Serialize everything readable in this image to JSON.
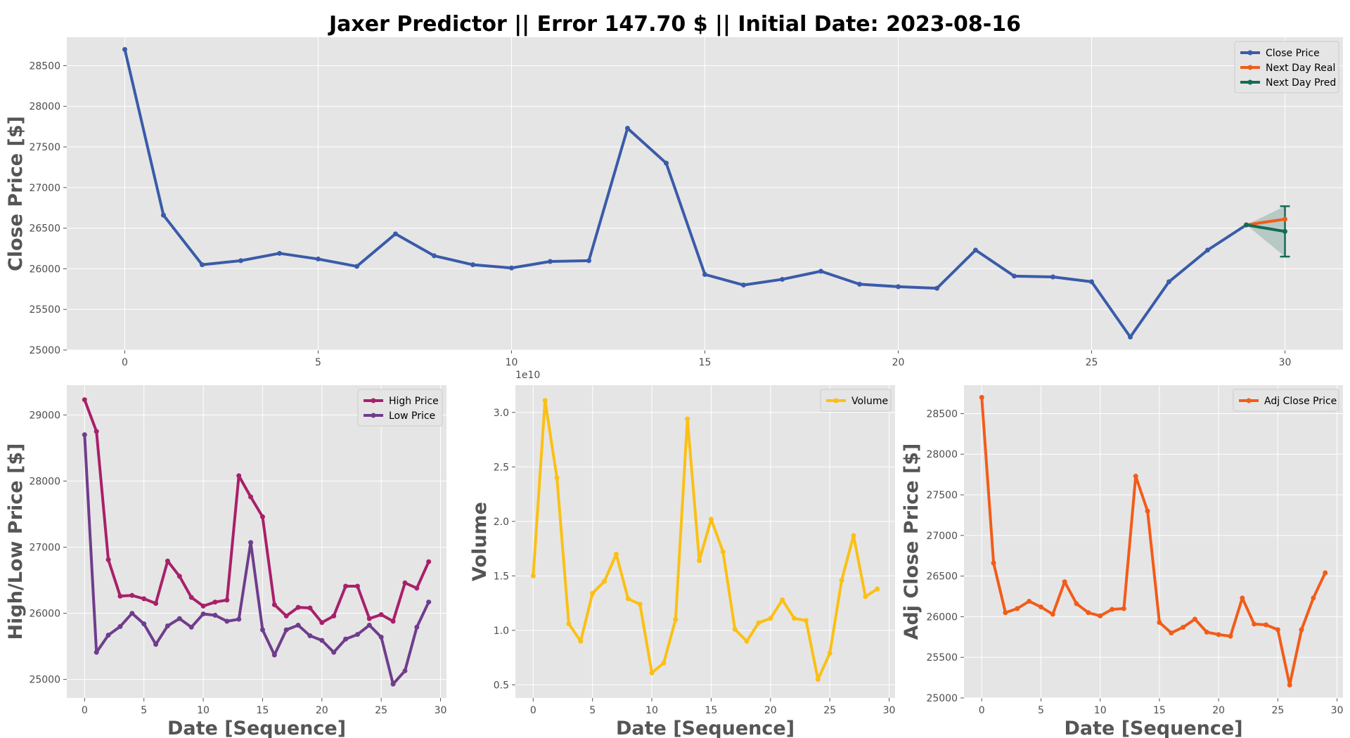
{
  "figure": {
    "title": "Jaxer Predictor || Error 147.70 $ || Initial Date: 2023-08-16"
  },
  "chart_data": [
    {
      "id": "close",
      "type": "line",
      "ylabel": "Close Price [$]",
      "xlabel": "",
      "xlim": [
        -1.5,
        31.5
      ],
      "ylim": [
        25000,
        28850
      ],
      "xticks": [
        0,
        5,
        10,
        15,
        20,
        25,
        30
      ],
      "yticks": [
        25000,
        25500,
        26000,
        26500,
        27000,
        27500,
        28000,
        28500
      ],
      "grid": true,
      "legend_position": "upper right",
      "series": [
        {
          "name": "Close Price",
          "color": "#3a5ba9",
          "x": [
            0,
            1,
            2,
            3,
            4,
            5,
            6,
            7,
            8,
            9,
            10,
            11,
            12,
            13,
            14,
            15,
            16,
            17,
            18,
            19,
            20,
            21,
            22,
            23,
            24,
            25,
            26,
            27,
            28,
            29
          ],
          "y": [
            28700,
            26660,
            26050,
            26100,
            26190,
            26120,
            26030,
            26430,
            26160,
            26050,
            26010,
            26090,
            26100,
            27730,
            27300,
            25930,
            25800,
            25870,
            25970,
            25810,
            25780,
            25760,
            26230,
            25910,
            25900,
            25840,
            25160,
            25840,
            26230,
            26540
          ]
        },
        {
          "name": "Next Day Real",
          "color": "#f25c19",
          "x": [
            29,
            30
          ],
          "y": [
            26540,
            26610
          ]
        },
        {
          "name": "Next Day Pred",
          "color": "#146b58",
          "x": [
            29,
            30
          ],
          "y": [
            26540,
            26460
          ]
        }
      ],
      "prediction_interval": {
        "x": 30,
        "lower": 26150,
        "upper": 26770,
        "color": "#146b58"
      }
    },
    {
      "id": "highlow",
      "type": "line",
      "ylabel": "High/Low Price [$]",
      "xlabel": "Date [Sequence]",
      "xlim": [
        -1.5,
        30.5
      ],
      "ylim": [
        24720,
        29450
      ],
      "xticks": [
        0,
        5,
        10,
        15,
        20,
        25,
        30
      ],
      "yticks": [
        25000,
        26000,
        27000,
        28000,
        29000
      ],
      "grid": true,
      "legend_position": "upper right",
      "series": [
        {
          "name": "High Price",
          "color": "#a8206a",
          "x": [
            0,
            1,
            2,
            3,
            4,
            5,
            6,
            7,
            8,
            9,
            10,
            11,
            12,
            13,
            14,
            15,
            16,
            17,
            18,
            19,
            20,
            21,
            22,
            23,
            24,
            25,
            26,
            27,
            28,
            29
          ],
          "y": [
            29230,
            28750,
            26810,
            26260,
            26270,
            26220,
            26150,
            26790,
            26560,
            26240,
            26110,
            26170,
            26200,
            28080,
            27760,
            27460,
            26130,
            25960,
            26090,
            26080,
            25860,
            25960,
            26410,
            26410,
            25920,
            25980,
            25880,
            26460,
            26380,
            26780
          ]
        },
        {
          "name": "Low Price",
          "color": "#6f3d8c",
          "x": [
            0,
            1,
            2,
            3,
            4,
            5,
            6,
            7,
            8,
            9,
            10,
            11,
            12,
            13,
            14,
            15,
            16,
            17,
            18,
            19,
            20,
            21,
            22,
            23,
            24,
            25,
            26,
            27,
            28,
            29
          ],
          "y": [
            28700,
            25410,
            25670,
            25800,
            26000,
            25840,
            25530,
            25810,
            25920,
            25790,
            25990,
            25970,
            25880,
            25910,
            27070,
            25750,
            25370,
            25750,
            25820,
            25660,
            25590,
            25410,
            25610,
            25680,
            25820,
            25640,
            24930,
            25130,
            25790,
            26170
          ]
        }
      ]
    },
    {
      "id": "volume",
      "type": "line",
      "ylabel": "Volume",
      "xlabel": "Date [Sequence]",
      "offset_label": "1e10",
      "xlim": [
        -1.5,
        30.5
      ],
      "ylim": [
        0.38,
        3.25
      ],
      "xticks": [
        0,
        5,
        10,
        15,
        20,
        25,
        30
      ],
      "yticks": [
        0.5,
        1.0,
        1.5,
        2.0,
        2.5,
        3.0
      ],
      "yticklabels": [
        "0.5",
        "1.0",
        "1.5",
        "2.0",
        "2.5",
        "3.0"
      ],
      "grid": true,
      "legend_position": "upper right",
      "series": [
        {
          "name": "Volume",
          "color": "#fbc015",
          "x": [
            0,
            1,
            2,
            3,
            4,
            5,
            6,
            7,
            8,
            9,
            10,
            11,
            12,
            13,
            14,
            15,
            16,
            17,
            18,
            19,
            20,
            21,
            22,
            23,
            24,
            25,
            26,
            27,
            28,
            29
          ],
          "y": [
            1.5,
            3.11,
            2.4,
            1.06,
            0.9,
            1.34,
            1.45,
            1.7,
            1.29,
            1.24,
            0.61,
            0.7,
            1.1,
            2.94,
            1.64,
            2.02,
            1.72,
            1.01,
            0.9,
            1.07,
            1.11,
            1.28,
            1.11,
            1.09,
            0.55,
            0.79,
            1.46,
            1.87,
            1.31,
            1.38
          ]
        }
      ]
    },
    {
      "id": "adjclose",
      "type": "line",
      "ylabel": "Adj Close Price [$]",
      "xlabel": "Date [Sequence]",
      "xlim": [
        -1.5,
        30.5
      ],
      "ylim": [
        25000,
        28850
      ],
      "xticks": [
        0,
        5,
        10,
        15,
        20,
        25,
        30
      ],
      "yticks": [
        25000,
        25500,
        26000,
        26500,
        27000,
        27500,
        28000,
        28500
      ],
      "grid": true,
      "legend_position": "upper right",
      "series": [
        {
          "name": "Adj Close Price",
          "color": "#f25c19",
          "x": [
            0,
            1,
            2,
            3,
            4,
            5,
            6,
            7,
            8,
            9,
            10,
            11,
            12,
            13,
            14,
            15,
            16,
            17,
            18,
            19,
            20,
            21,
            22,
            23,
            24,
            25,
            26,
            27,
            28,
            29
          ],
          "y": [
            28700,
            26660,
            26050,
            26100,
            26190,
            26120,
            26030,
            26430,
            26160,
            26050,
            26010,
            26090,
            26100,
            27730,
            27300,
            25930,
            25800,
            25870,
            25970,
            25810,
            25780,
            25760,
            26230,
            25910,
            25900,
            25840,
            25160,
            25840,
            26230,
            26540
          ]
        }
      ]
    }
  ]
}
